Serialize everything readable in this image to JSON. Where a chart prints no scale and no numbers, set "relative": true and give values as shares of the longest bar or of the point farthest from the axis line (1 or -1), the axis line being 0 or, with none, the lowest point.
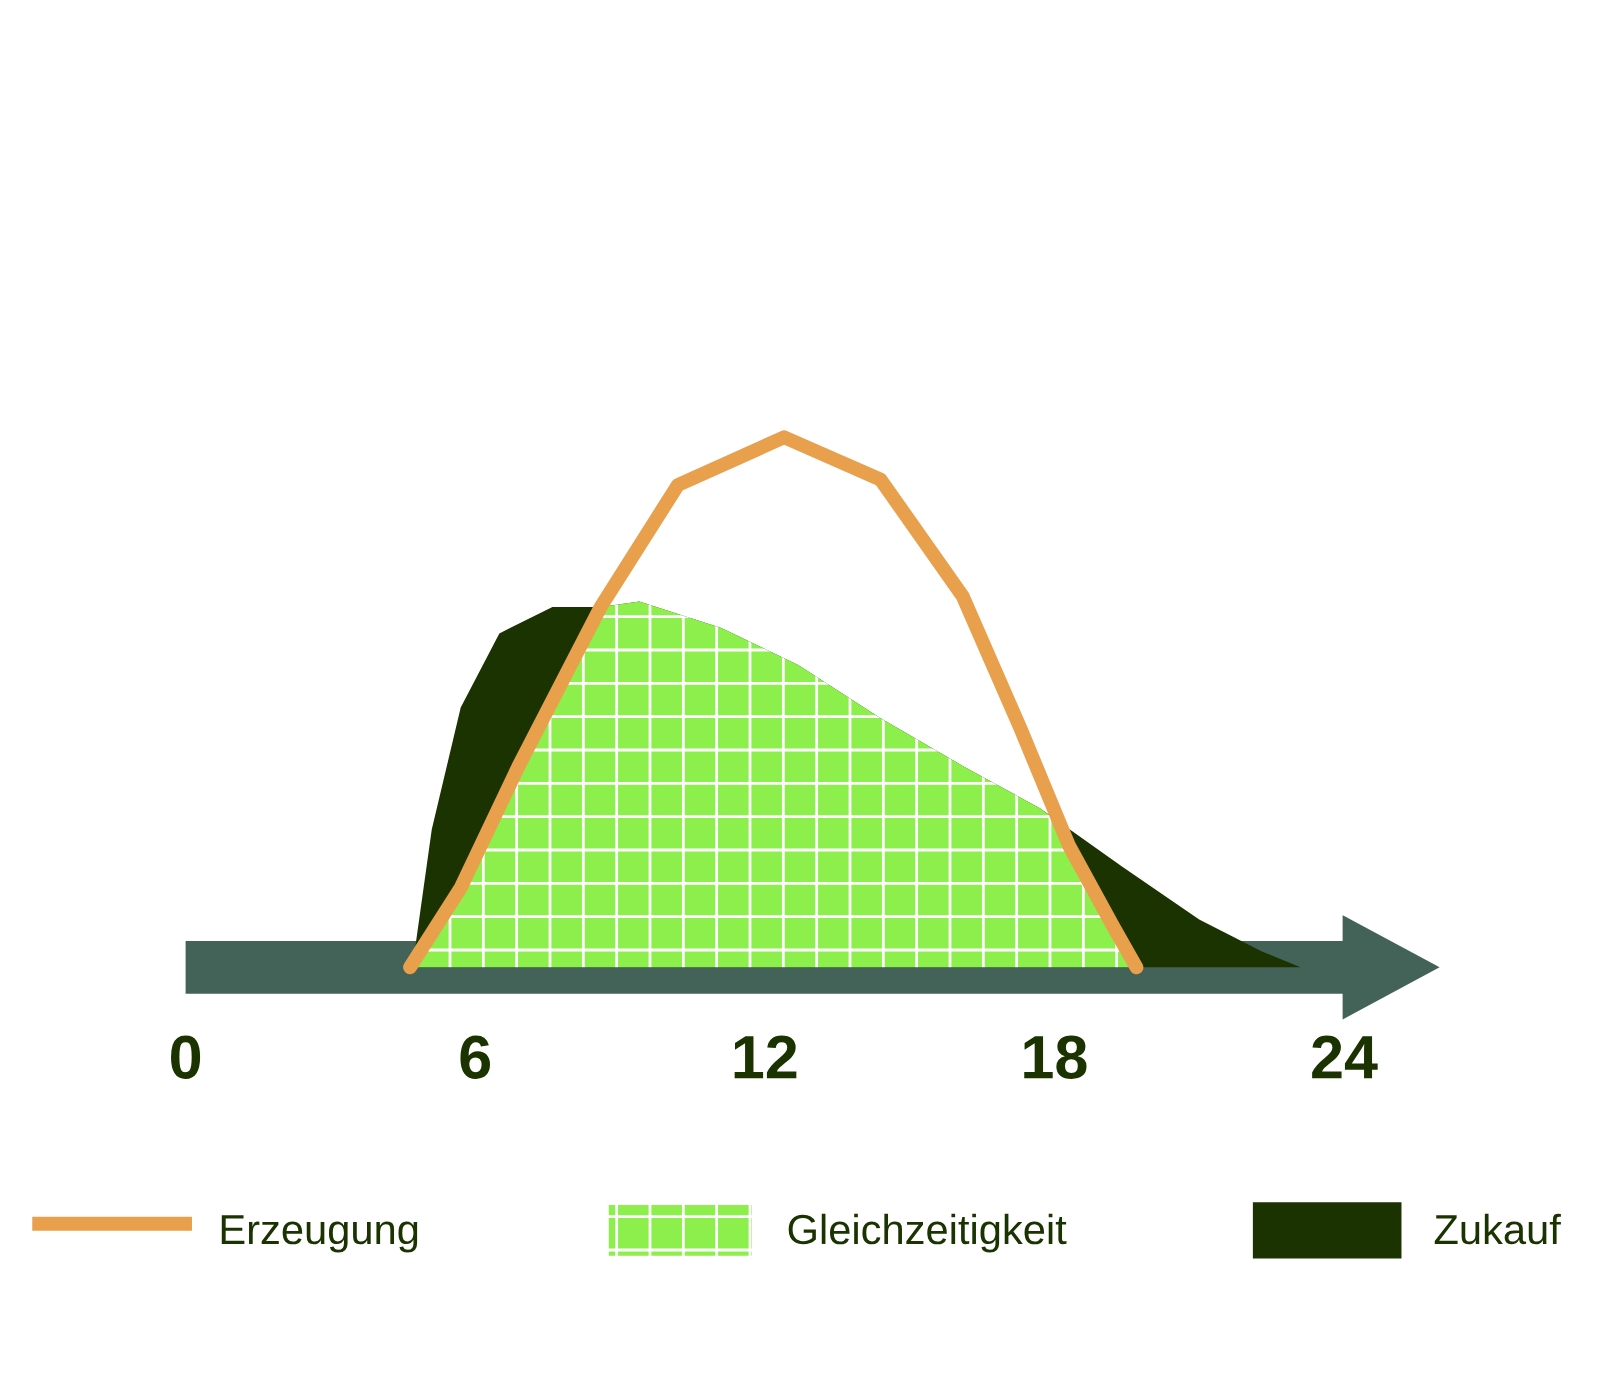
{
  "chart_data": {
    "type": "area",
    "relative": true,
    "xlim": [
      0,
      24
    ],
    "xticks": [
      0,
      6,
      12,
      18,
      24
    ],
    "legend": "bottom",
    "grid": false,
    "series": [
      {
        "name": "Zukauf",
        "color": "#1a3300",
        "x": [
          4.7,
          5.1,
          5.7,
          6.5,
          7.6,
          8.6,
          9.4,
          11.1,
          12.7,
          14.4,
          16.1,
          17.7,
          19.4,
          21,
          22.3,
          23.1
        ],
        "values": [
          0,
          0.26,
          0.49,
          0.63,
          0.68,
          0.68,
          0.69,
          0.64,
          0.57,
          0.47,
          0.38,
          0.3,
          0.19,
          0.09,
          0.03,
          0
        ]
      },
      {
        "name": "Gleichzeitigkeit",
        "color": "#8cef4c",
        "x": [
          4.7,
          5.7,
          6.9,
          8.6,
          9.4,
          11.1,
          12.7,
          14.4,
          16.1,
          17.7,
          18.0,
          18.3,
          19.2,
          19.7
        ],
        "values": [
          0,
          0.15,
          0.38,
          0.68,
          0.69,
          0.64,
          0.57,
          0.47,
          0.38,
          0.3,
          0.28,
          0.23,
          0.08,
          0
        ]
      },
      {
        "name": "Erzeugung",
        "type": "line",
        "color": "#e8a04c",
        "x": [
          4.65,
          5.7,
          6.9,
          8.6,
          10.2,
          12.4,
          14.4,
          16.1,
          17.3,
          18.3,
          19.2,
          19.7
        ],
        "values": [
          0,
          0.15,
          0.38,
          0.68,
          0.91,
          1.0,
          0.92,
          0.7,
          0.45,
          0.23,
          0.08,
          0
        ]
      }
    ]
  }
}
